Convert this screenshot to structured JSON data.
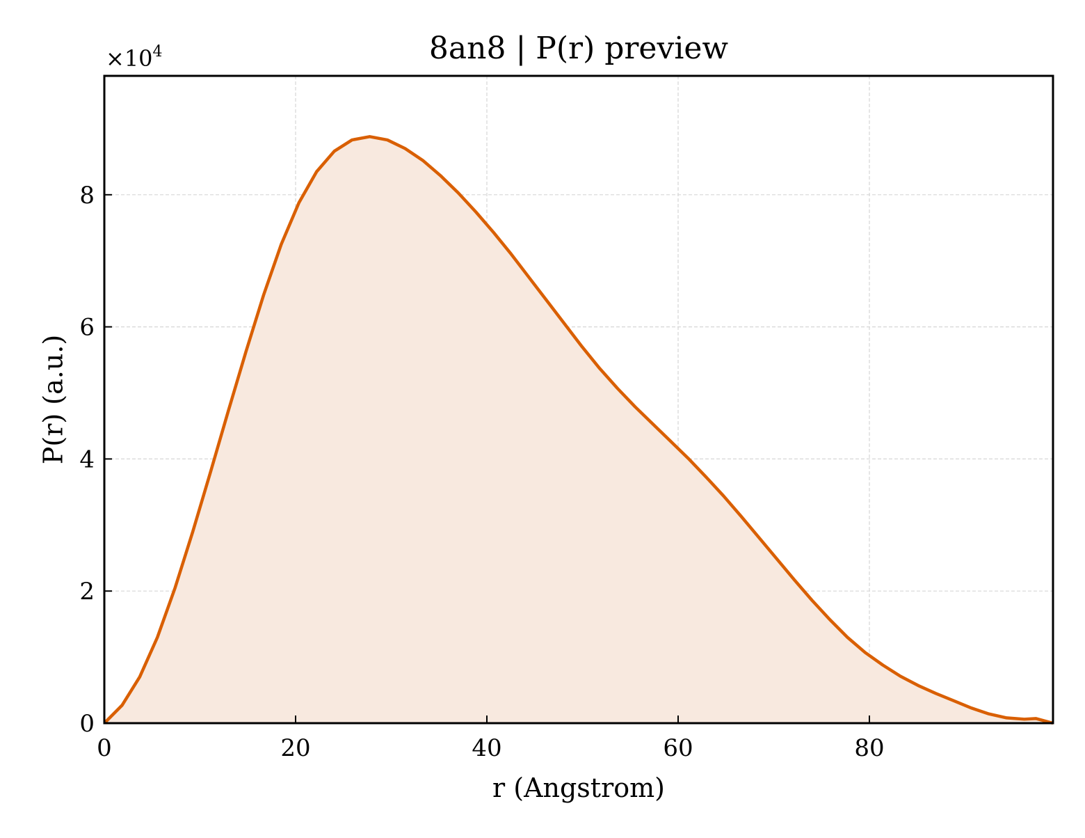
{
  "chart_data": {
    "type": "area",
    "title": "8an8 | P(r) preview",
    "xlabel": "r (Angstrom)",
    "ylabel": "P(r) (a.u.)",
    "y_offset_label": "×10",
    "y_offset_exponent": "4",
    "xlim": [
      0,
      99.2
    ],
    "ylim": [
      0,
      9.8
    ],
    "y_scale_factor": 10000,
    "x_ticks": [
      0,
      20,
      40,
      60,
      80
    ],
    "x_tick_labels": [
      "0",
      "20",
      "40",
      "60",
      "80"
    ],
    "y_ticks": [
      0,
      2,
      4,
      6,
      8
    ],
    "y_tick_labels": [
      "0",
      "2",
      "4",
      "6",
      "8"
    ],
    "grid": true,
    "colors": {
      "line": "#d95f02",
      "fill": "#f8e9df"
    },
    "series": [
      {
        "x": [
          0,
          1.85,
          3.7,
          5.55,
          7.4,
          9.25,
          11.1,
          12.95,
          14.8,
          16.65,
          18.5,
          20.35,
          22.2,
          24.05,
          25.9,
          27.75,
          29.6,
          31.45,
          33.3,
          35.15,
          37.0,
          38.85,
          40.7,
          42.55,
          44.4,
          46.25,
          48.1,
          49.95,
          51.8,
          53.65,
          55.5,
          57.35,
          59.2,
          61.05,
          62.9,
          64.75,
          66.6,
          68.45,
          70.3,
          72.15,
          74.0,
          75.85,
          77.7,
          79.55,
          81.4,
          83.25,
          85.1,
          86.95,
          88.8,
          90.65,
          92.5,
          94.35,
          96.2,
          97.4,
          99.2
        ],
        "values": [
          0.0,
          0.27,
          0.7,
          1.3,
          2.05,
          2.9,
          3.8,
          4.72,
          5.62,
          6.48,
          7.25,
          7.88,
          8.35,
          8.66,
          8.83,
          8.88,
          8.83,
          8.7,
          8.52,
          8.29,
          8.03,
          7.74,
          7.43,
          7.1,
          6.75,
          6.4,
          6.05,
          5.7,
          5.37,
          5.07,
          4.79,
          4.53,
          4.27,
          4.01,
          3.73,
          3.44,
          3.13,
          2.81,
          2.49,
          2.17,
          1.86,
          1.57,
          1.3,
          1.07,
          0.88,
          0.71,
          0.57,
          0.45,
          0.34,
          0.23,
          0.14,
          0.08,
          0.06,
          0.07,
          0.0
        ]
      }
    ]
  }
}
